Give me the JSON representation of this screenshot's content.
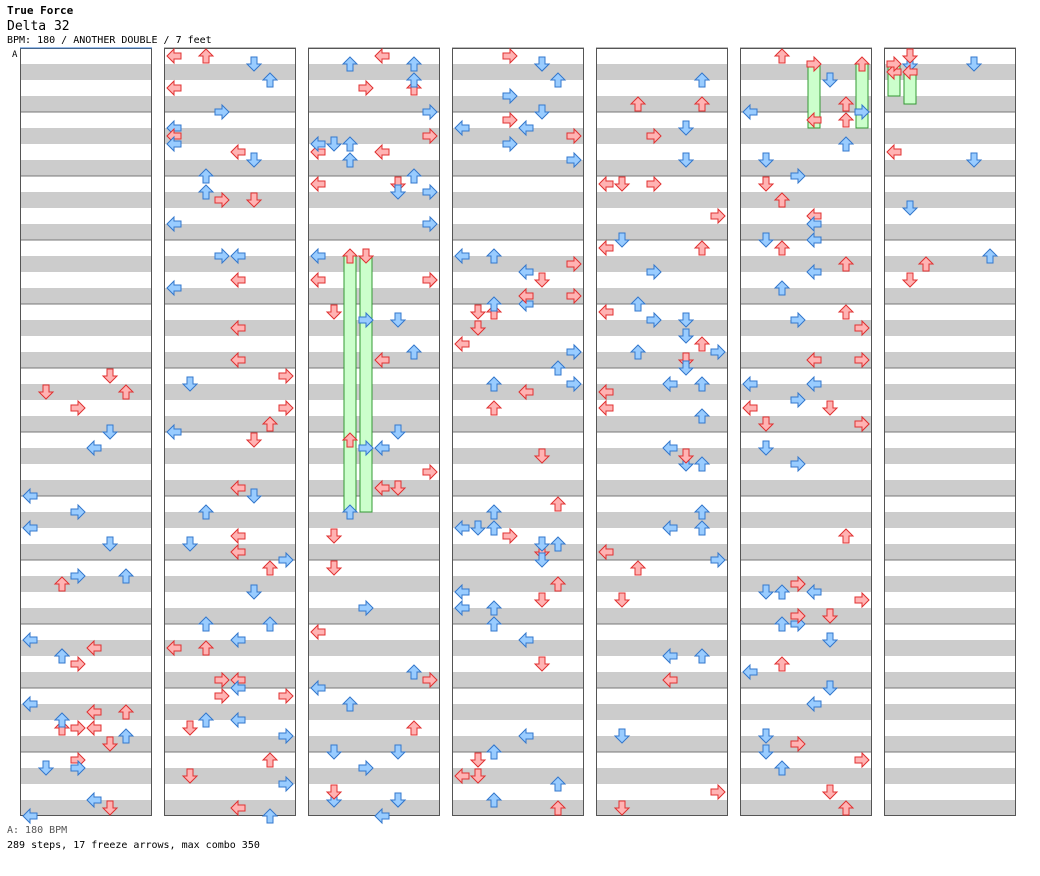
{
  "header": {
    "song_title": "True Force",
    "chart_name": "Delta 32",
    "chart_info": "BPM: 180 / ANOTHER DOUBLE / 7 feet"
  },
  "bpm_marker": "A",
  "footer": {
    "bpm_line": "A: 180 BPM",
    "stats_line": "289 steps, 17 freeze arrows, max combo 350"
  },
  "colors": {
    "red_arrow_fill": "#ffb3b3",
    "red_arrow_stroke": "#e03030",
    "blue_arrow_fill": "#99ccff",
    "blue_arrow_stroke": "#3377cc",
    "freeze_fill": "#ccffcc",
    "freeze_stroke": "#339933",
    "band_gray": "#cccccc"
  },
  "chart_data": {
    "type": "stepchart",
    "columns": 7,
    "measures_per_column": 12,
    "lanes": 8,
    "notes": [
      [
        1,
        1,
        1,
        "L"
      ],
      [
        1,
        1,
        4,
        "R"
      ],
      [
        1,
        0,
        6,
        "D"
      ],
      [
        1,
        1,
        9,
        "L"
      ],
      [
        1,
        1,
        15,
        "R"
      ],
      [
        1,
        3,
        15,
        "R"
      ],
      [
        1,
        0,
        19,
        "L"
      ],
      [
        1,
        1,
        19,
        "D"
      ],
      [
        1,
        1,
        20,
        "R"
      ],
      [
        1,
        0,
        24,
        "D"
      ],
      [
        1,
        1,
        27,
        "R"
      ],
      [
        1,
        3,
        30,
        "R"
      ],
      [
        2,
        0,
        1,
        "L"
      ],
      [
        2,
        0,
        2,
        "L"
      ],
      [
        2,
        1,
        4,
        "R"
      ],
      [
        2,
        0,
        9,
        "L"
      ],
      [
        2,
        1,
        11,
        "D"
      ],
      [
        2,
        0,
        13,
        "R"
      ],
      [
        2,
        1,
        14,
        "U"
      ],
      [
        2,
        2,
        14,
        "D"
      ],
      [
        2,
        1,
        19,
        "U"
      ],
      [
        2,
        1,
        20,
        "L"
      ],
      [
        2,
        2,
        21,
        "R"
      ],
      [
        2,
        1,
        25,
        "R"
      ],
      [
        3,
        0,
        1,
        "L"
      ],
      [
        3,
        2,
        2,
        "D"
      ],
      [
        3,
        1,
        5,
        "U"
      ],
      [
        3,
        0,
        9,
        "R"
      ],
      [
        3,
        1,
        9,
        "L"
      ],
      [
        3,
        2,
        11,
        "R"
      ],
      [
        3,
        2,
        13,
        "R"
      ],
      [
        3,
        1,
        17,
        "L"
      ],
      [
        3,
        2,
        18,
        "L"
      ],
      [
        3,
        1,
        21,
        "U"
      ],
      [
        3,
        1,
        25,
        "R"
      ],
      [
        3,
        2,
        27,
        "U"
      ],
      [
        4,
        0,
        1,
        "R"
      ],
      [
        4,
        1,
        3,
        "D"
      ],
      [
        4,
        1,
        5,
        "R"
      ],
      [
        4,
        2,
        6,
        "R"
      ],
      [
        4,
        0,
        9,
        "L"
      ],
      [
        4,
        2,
        10,
        "L"
      ],
      [
        4,
        1,
        12,
        "R"
      ],
      [
        4,
        0,
        13,
        "R"
      ],
      [
        4,
        1,
        17,
        "L"
      ],
      [
        4,
        2,
        18,
        "L"
      ],
      [
        4,
        2,
        22,
        "U"
      ],
      [
        4,
        1,
        26,
        "R"
      ],
      [
        5,
        0,
        2,
        "L"
      ],
      [
        5,
        1,
        3,
        "D"
      ],
      [
        5,
        1,
        5,
        "R"
      ],
      [
        5,
        0,
        9,
        "U"
      ],
      [
        5,
        1,
        10,
        "R"
      ],
      [
        5,
        1,
        13,
        "D"
      ],
      [
        5,
        0,
        14,
        "R"
      ],
      [
        5,
        1,
        17,
        "L"
      ],
      [
        5,
        2,
        18,
        "R"
      ],
      [
        5,
        1,
        21,
        "D"
      ],
      [
        5,
        1,
        25,
        "L"
      ],
      [
        5,
        2,
        27,
        "R"
      ],
      [
        6,
        0,
        1,
        "L"
      ],
      [
        6,
        2,
        1,
        "R"
      ],
      [
        6,
        1,
        5,
        "L"
      ],
      [
        6,
        0,
        9,
        "R"
      ],
      [
        6,
        2,
        10,
        "U"
      ],
      [
        6,
        1,
        13,
        "L"
      ],
      [
        6,
        2,
        17,
        "R"
      ],
      [
        6,
        0,
        18,
        "L"
      ],
      [
        6,
        1,
        22,
        "R"
      ],
      [
        6,
        2,
        25,
        "L"
      ],
      [
        6,
        1,
        26,
        "D"
      ],
      [
        6,
        0,
        29,
        "U"
      ]
    ],
    "freezes": [
      [
        2,
        2,
        25,
        "U",
        32
      ],
      [
        2,
        3,
        25,
        "D",
        32
      ],
      [
        5,
        4,
        1,
        "R",
        8
      ],
      [
        5,
        7,
        1,
        "U",
        8
      ],
      [
        6,
        0,
        1,
        "R",
        4
      ],
      [
        6,
        1,
        2,
        "L",
        4
      ]
    ],
    "gimmick_markers": [
      [
        1,
        "L"
      ],
      [
        1,
        "L"
      ],
      [
        2,
        "D"
      ],
      [
        2,
        "D"
      ]
    ]
  }
}
